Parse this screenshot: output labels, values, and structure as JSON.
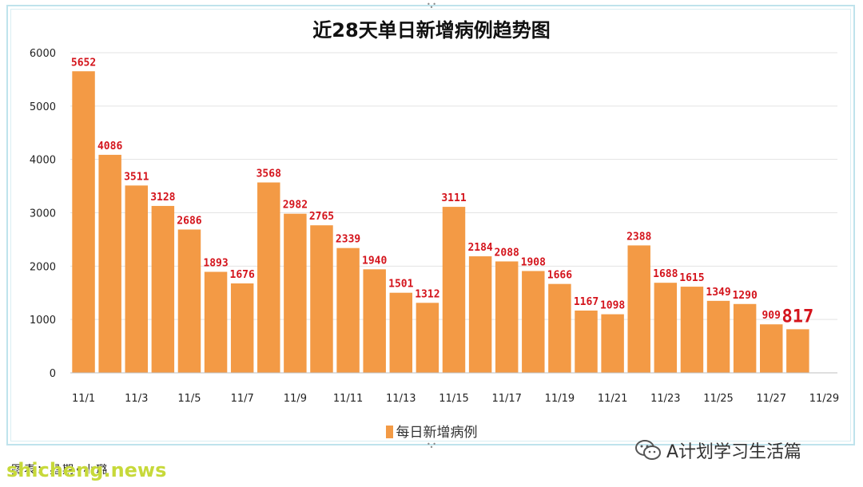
{
  "chart_data": {
    "type": "bar",
    "title": "近28天单日新增病例趋势图",
    "categories": [
      "11/1",
      "11/2",
      "11/3",
      "11/4",
      "11/5",
      "11/6",
      "11/7",
      "11/8",
      "11/9",
      "11/10",
      "11/11",
      "11/12",
      "11/13",
      "11/14",
      "11/15",
      "11/16",
      "11/17",
      "11/18",
      "11/19",
      "11/20",
      "11/21",
      "11/22",
      "11/23",
      "11/24",
      "11/25",
      "11/26",
      "11/27",
      "11/28"
    ],
    "x_tick_labels": [
      "11/1",
      "11/3",
      "11/5",
      "11/7",
      "11/9",
      "11/11",
      "11/13",
      "11/15",
      "11/17",
      "11/19",
      "11/21",
      "11/23",
      "11/25",
      "11/27",
      "11/29"
    ],
    "series": [
      {
        "name": "每日新增病例",
        "values": [
          5652,
          4086,
          3511,
          3128,
          2686,
          1893,
          1676,
          3568,
          2982,
          2765,
          2339,
          1940,
          1501,
          1312,
          3111,
          2184,
          2088,
          1908,
          1666,
          1167,
          1098,
          2388,
          1688,
          1615,
          1349,
          1290,
          909,
          817
        ]
      }
    ],
    "ylim": [
      0,
      6000
    ],
    "y_ticks": [
      0,
      1000,
      2000,
      3000,
      4000,
      5000,
      6000
    ],
    "grid": true,
    "legend": "bottom",
    "colors": {
      "bar": "#f39a45",
      "label": "#d4141c",
      "grid": "#e3e3e3"
    }
  },
  "footer": {
    "credit": "图表：星期•小璐",
    "site_watermark": "shicheng.news",
    "wechat_account": "A计划学习生活篇"
  }
}
